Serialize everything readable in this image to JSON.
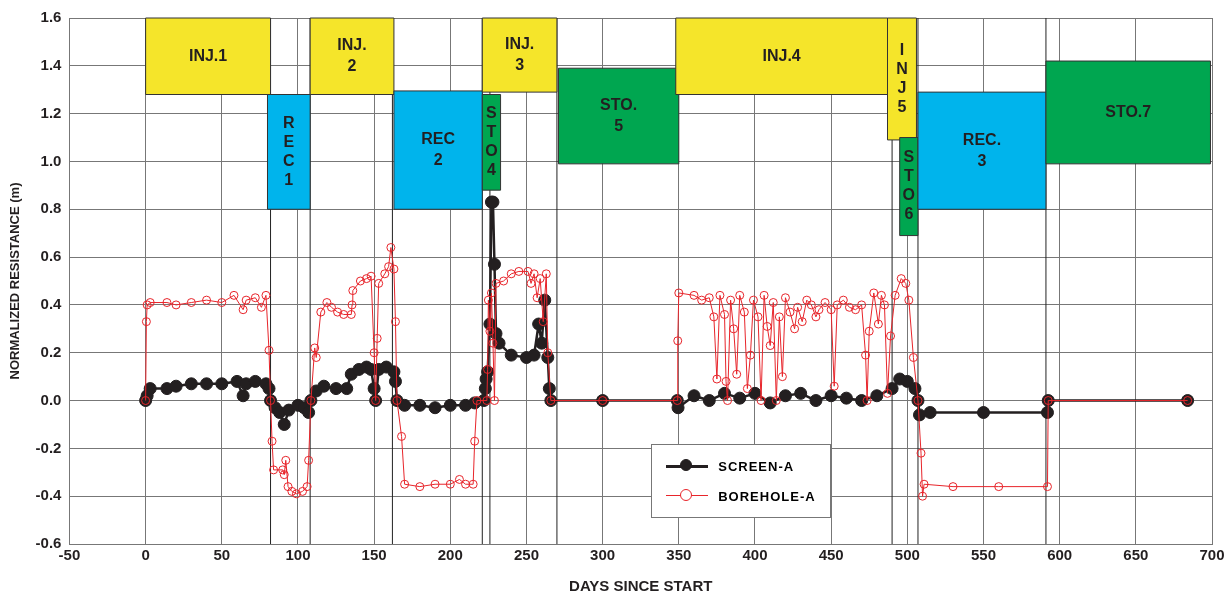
{
  "chart_data": {
    "type": "line",
    "xlabel": "DAYS SINCE START",
    "ylabel": "NORMALIZED RESISTANCE (m)",
    "xlim": [
      -50,
      700
    ],
    "xticks": [
      -50,
      0,
      50,
      100,
      150,
      200,
      250,
      300,
      350,
      400,
      450,
      500,
      550,
      600,
      650,
      700
    ],
    "ylim": [
      -0.6,
      1.6
    ],
    "yticks": [
      -0.6,
      -0.4,
      -0.2,
      {
        "value": 0,
        "label": "0.0"
      },
      0.2,
      0.4,
      0.6,
      0.8,
      {
        "value": 1,
        "label": "1.0"
      },
      1.2,
      1.4,
      1.6
    ],
    "grid": true,
    "legend": "bottom",
    "marker": "circle",
    "line_style": "solid",
    "series": [
      {
        "name": "SCREEN-A",
        "color": "#231f20",
        "x": [
          0,
          1,
          3,
          14,
          20,
          30,
          40,
          50,
          60,
          64,
          66,
          72,
          79,
          81,
          82,
          85,
          88,
          91,
          94,
          100,
          104,
          107,
          108.5,
          112,
          117,
          125,
          132,
          135,
          140,
          145,
          148,
          150,
          151,
          153,
          158,
          163,
          164,
          165,
          170,
          180,
          190,
          200,
          210,
          216,
          222,
          223,
          223.5,
          224.5,
          226,
          227,
          228,
          229,
          230,
          232,
          240,
          250,
          255,
          258,
          260,
          262,
          264,
          265,
          266,
          300,
          349,
          349.5,
          360,
          370,
          380,
          390,
          400,
          410,
          420,
          430,
          440,
          450,
          460,
          470,
          480,
          490,
          495,
          500,
          505,
          507,
          508,
          515,
          550,
          592,
          592.5,
          684
        ],
        "values": [
          0,
          0.02,
          0.05,
          0.05,
          0.06,
          0.07,
          0.07,
          0.07,
          0.08,
          0.02,
          0.07,
          0.08,
          0.07,
          0.05,
          0,
          -0.03,
          -0.05,
          -0.1,
          -0.04,
          -0.02,
          -0.03,
          -0.05,
          0,
          0.04,
          0.06,
          0.05,
          0.05,
          0.11,
          0.13,
          0.14,
          0.13,
          0.05,
          0,
          0.13,
          0.14,
          0.12,
          0.08,
          0,
          -0.02,
          -0.02,
          -0.03,
          -0.02,
          -0.02,
          -0.01,
          0,
          0.05,
          0.09,
          0.12,
          0.32,
          0.83,
          0.83,
          0.57,
          0.28,
          0.24,
          0.19,
          0.18,
          0.19,
          0.32,
          0.24,
          0.42,
          0.18,
          0.05,
          0,
          0,
          0,
          -0.03,
          0.02,
          0,
          0.03,
          0.01,
          0.03,
          -0.01,
          0.02,
          0.03,
          0,
          0.02,
          0.01,
          0,
          0.02,
          0.05,
          0.09,
          0.08,
          0.05,
          0,
          -0.06,
          -0.05,
          -0.05,
          -0.05,
          0,
          0
        ]
      },
      {
        "name": "BOREHOLE-A",
        "color": "#e8252b",
        "x": [
          0,
          0.5,
          1,
          3,
          14,
          20,
          30,
          40,
          50,
          58,
          64,
          66,
          72,
          76,
          79,
          81,
          82,
          83,
          84,
          90,
          91,
          92,
          93.5,
          96,
          99,
          103,
          106,
          107,
          108.5,
          111,
          112,
          115,
          119,
          122,
          126,
          130,
          135,
          135.5,
          136,
          141,
          145,
          148,
          150,
          151,
          152,
          153,
          157,
          159.5,
          161,
          163,
          164,
          165,
          168,
          170,
          180,
          190,
          200,
          206,
          210,
          215,
          216,
          217.5,
          224,
          224.5,
          225,
          226,
          227,
          228,
          229,
          230,
          235,
          240,
          245,
          251,
          253,
          255,
          257,
          259,
          261,
          263,
          264,
          266,
          300,
          349,
          349.3,
          350,
          360,
          365,
          370,
          373,
          375,
          377,
          380,
          381,
          382,
          384,
          386,
          388,
          390,
          393,
          395,
          397,
          399,
          402,
          404,
          406,
          408,
          410,
          412,
          414,
          416,
          418,
          420,
          423,
          426,
          428,
          431,
          434,
          437,
          440,
          442,
          446,
          450,
          452,
          454,
          458,
          462,
          466,
          470,
          472.6,
          473.6,
          475,
          478,
          481,
          483,
          485,
          487,
          489,
          492,
          496,
          499,
          501,
          504,
          507,
          509,
          510,
          511,
          530,
          560,
          592,
          592.5,
          684
        ],
        "values": [
          0,
          0.33,
          0.4,
          0.41,
          0.41,
          0.4,
          0.41,
          0.42,
          0.41,
          0.44,
          0.38,
          0.42,
          0.43,
          0.39,
          0.44,
          0.21,
          0,
          -0.17,
          -0.29,
          -0.29,
          -0.31,
          -0.25,
          -0.36,
          -0.38,
          -0.39,
          -0.38,
          -0.36,
          -0.25,
          0,
          0.22,
          0.18,
          0.37,
          0.41,
          0.39,
          0.37,
          0.36,
          0.36,
          0.4,
          0.46,
          0.5,
          0.51,
          0.52,
          0.2,
          0,
          0.26,
          0.49,
          0.53,
          0.56,
          0.64,
          0.55,
          0.33,
          0,
          -0.15,
          -0.35,
          -0.36,
          -0.35,
          -0.35,
          -0.33,
          -0.35,
          -0.35,
          -0.17,
          0,
          0,
          0.13,
          0.42,
          0.29,
          0.45,
          0.24,
          0,
          0.49,
          0.5,
          0.53,
          0.54,
          0.54,
          0.49,
          0.53,
          0.43,
          0.51,
          0.33,
          0.53,
          0.2,
          0,
          0,
          0,
          0.25,
          0.45,
          0.44,
          0.42,
          0.43,
          0.35,
          0.09,
          0.44,
          0.36,
          0.08,
          0,
          0.42,
          0.3,
          0.11,
          0.44,
          0.37,
          0.05,
          0.19,
          0.42,
          0.35,
          0,
          0.44,
          0.31,
          0.23,
          0.41,
          0,
          0.35,
          0.1,
          0.43,
          0.37,
          0.3,
          0.39,
          0.33,
          0.42,
          0.4,
          0.35,
          0.38,
          0.41,
          0.38,
          0.06,
          0.4,
          0.42,
          0.39,
          0.38,
          0.4,
          0.19,
          0,
          0.29,
          0.45,
          0.32,
          0.44,
          0.4,
          0.03,
          0.27,
          0.44,
          0.51,
          0.49,
          0.42,
          0.18,
          0,
          -0.22,
          -0.4,
          -0.35,
          -0.36,
          -0.36,
          -0.36,
          0,
          0
        ]
      }
    ],
    "bands": [
      {
        "axis": "x",
        "from": 0,
        "to": 82,
        "label": "INJ.1",
        "color": "#f5e52a"
      },
      {
        "axis": "x",
        "from": 80,
        "to": 108,
        "label": "REC1",
        "color": "#00b4ec"
      },
      {
        "axis": "x",
        "from": 108,
        "to": 163,
        "label": "INJ. 2",
        "color": "#f5e52a"
      },
      {
        "axis": "x",
        "from": 163,
        "to": 221,
        "label": "REC 2",
        "color": "#00b4ec"
      },
      {
        "axis": "x",
        "from": 221,
        "to": 233,
        "label": "STO4",
        "color": "#00a650"
      },
      {
        "axis": "x",
        "from": 221,
        "to": 270,
        "label": "INJ. 3",
        "color": "#f5e52a"
      },
      {
        "axis": "x",
        "from": 271,
        "to": 350,
        "label": "STO. 5",
        "color": "#00a650"
      },
      {
        "axis": "x",
        "from": 348,
        "to": 487,
        "label": "INJ.4",
        "color": "#f5e52a"
      },
      {
        "axis": "x",
        "from": 487,
        "to": 506,
        "label": "INJ5",
        "color": "#f5e52a"
      },
      {
        "axis": "x",
        "from": 495,
        "to": 507,
        "label": "STO6",
        "color": "#00a650"
      },
      {
        "axis": "x",
        "from": 507,
        "to": 591,
        "label": "REC. 3",
        "color": "#00b4ec"
      },
      {
        "axis": "x",
        "from": 591,
        "to": 699,
        "label": "STO.7",
        "color": "#00a650"
      }
    ],
    "ref_lines": [
      {
        "axis": "x",
        "value": 82
      },
      {
        "axis": "x",
        "value": 108
      },
      {
        "axis": "x",
        "value": 162
      },
      {
        "axis": "x",
        "value": 221
      },
      {
        "axis": "x",
        "value": 226
      },
      {
        "axis": "x",
        "value": 270
      },
      {
        "axis": "x",
        "value": 490
      },
      {
        "axis": "x",
        "value": 507
      },
      {
        "axis": "x",
        "value": 591
      }
    ]
  }
}
